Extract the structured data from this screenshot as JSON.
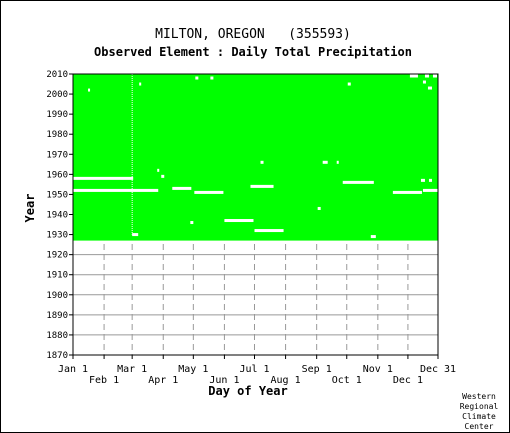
{
  "chart_data": {
    "type": "heatmap",
    "title": "MILTON, OREGON   (355593)",
    "subtitle": "Observed Element : Daily Total Precipitation",
    "xlabel": "Day of Year",
    "ylabel": "Year",
    "x_ticks_top_row": [
      {
        "label": "Jan 1",
        "day": 1
      },
      {
        "label": "Mar 1",
        "day": 60
      },
      {
        "label": "May 1",
        "day": 121
      },
      {
        "label": "Jul 1",
        "day": 182
      },
      {
        "label": "Sep 1",
        "day": 244
      },
      {
        "label": "Nov 1",
        "day": 305
      },
      {
        "label": "Dec 31",
        "day": 365
      }
    ],
    "x_ticks_bottom_row": [
      {
        "label": "Feb 1",
        "day": 32
      },
      {
        "label": "Apr 1",
        "day": 91
      },
      {
        "label": "Jun 1",
        "day": 152
      },
      {
        "label": "Aug 1",
        "day": 213
      },
      {
        "label": "Oct 1",
        "day": 274
      },
      {
        "label": "Dec 1",
        "day": 335
      }
    ],
    "xlim": [
      1,
      365
    ],
    "y_ticks": [
      1870,
      1880,
      1890,
      1900,
      1910,
      1920,
      1930,
      1940,
      1950,
      1960,
      1970,
      1980,
      1990,
      2000,
      2010
    ],
    "ylim": [
      1870,
      2010
    ],
    "grid": true,
    "data_color": "#00ff00",
    "missing_color": "#ffffff",
    "coverage": {
      "start_year": 1927,
      "end_year": 2010
    },
    "missing_segments": [
      {
        "year": 1958,
        "start_day": 1,
        "end_day": 60
      },
      {
        "year": 1952,
        "start_day": 1,
        "end_day": 85
      },
      {
        "year": 1953,
        "start_day": 100,
        "end_day": 118
      },
      {
        "year": 1951,
        "start_day": 122,
        "end_day": 150
      },
      {
        "year": 1954,
        "start_day": 178,
        "end_day": 200
      },
      {
        "year": 1937,
        "start_day": 152,
        "end_day": 180
      },
      {
        "year": 1932,
        "start_day": 182,
        "end_day": 210
      },
      {
        "year": 1930,
        "start_day": 60,
        "end_day": 65
      },
      {
        "year": 1956,
        "start_day": 270,
        "end_day": 300
      },
      {
        "year": 1951,
        "start_day": 320,
        "end_day": 348
      },
      {
        "year": 1952,
        "start_day": 350,
        "end_day": 365
      },
      {
        "year": 1929,
        "start_day": 298,
        "end_day": 302
      },
      {
        "year": 1966,
        "start_day": 188,
        "end_day": 190
      },
      {
        "year": 1966,
        "start_day": 250,
        "end_day": 254
      },
      {
        "year": 1966,
        "start_day": 264,
        "end_day": 265
      },
      {
        "year": 1943,
        "start_day": 245,
        "end_day": 247
      },
      {
        "year": 1957,
        "start_day": 348,
        "end_day": 351
      },
      {
        "year": 1957,
        "start_day": 356,
        "end_day": 358
      },
      {
        "year": 1959,
        "start_day": 89,
        "end_day": 91
      },
      {
        "year": 2002,
        "start_day": 16,
        "end_day": 17
      },
      {
        "year": 2005,
        "start_day": 67,
        "end_day": 68
      },
      {
        "year": 2008,
        "start_day": 123,
        "end_day": 125
      },
      {
        "year": 2008,
        "start_day": 138,
        "end_day": 140
      },
      {
        "year": 2006,
        "start_day": 350,
        "end_day": 352
      },
      {
        "year": 2009,
        "start_day": 337,
        "end_day": 344
      },
      {
        "year": 2009,
        "start_day": 352,
        "end_day": 355
      },
      {
        "year": 2009,
        "start_day": 360,
        "end_day": 363
      },
      {
        "year": 2003,
        "start_day": 355,
        "end_day": 358
      },
      {
        "year": 2005,
        "start_day": 275,
        "end_day": 277
      },
      {
        "year": 1936,
        "start_day": 118,
        "end_day": 120
      },
      {
        "year": 1962,
        "start_day": 85,
        "end_day": 86
      }
    ],
    "missing_column": {
      "day": 60,
      "start_year": 1930,
      "end_year": 2010
    }
  },
  "footer": {
    "credit": [
      "Western",
      "Regional",
      "Climate",
      "Center"
    ]
  }
}
